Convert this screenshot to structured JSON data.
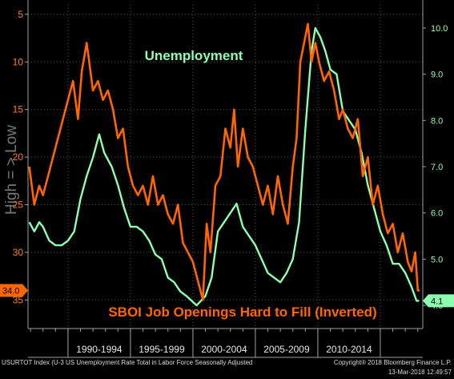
{
  "chart_data": {
    "type": "line",
    "title_unemployment": "Unemployment",
    "title_sboi": "SBOI Job Openings Hard to Fill (Inverted)",
    "left_axis_label": "High = > Low",
    "left_axis": {
      "ticks": [
        5,
        10,
        15,
        20,
        25,
        30,
        35
      ],
      "inverted": true,
      "range": [
        4,
        38
      ]
    },
    "right_axis": {
      "ticks": [
        "10.0",
        "9.0",
        "8.0",
        "7.0",
        "6.0",
        "5.0",
        "4.0"
      ],
      "range": [
        3.5,
        10.5
      ]
    },
    "x_axis": {
      "range": [
        1986.8,
        2018.4
      ],
      "period_labels": [
        "1990-1994",
        "1995-1999",
        "2000-2004",
        "2005-2009",
        "2010-2014"
      ],
      "period_ticks": [
        1990,
        1995,
        2000,
        2005,
        2010,
        2015
      ]
    },
    "last_value_left": "34.0",
    "last_value_right": "4.1",
    "colors": {
      "sboi": "#ff6600",
      "unemployment": "#8dffb0",
      "axis": "#a0a0a0",
      "bg": "#000000",
      "left_axis_text": "#ff7f1e",
      "right_axis_text": "#8dffb0",
      "axis_label": "#777777"
    },
    "series": [
      {
        "name": "Unemployment",
        "axis": "right",
        "points": [
          [
            1986.9,
            5.8
          ],
          [
            1987.3,
            5.6
          ],
          [
            1987.7,
            5.8
          ],
          [
            1988.0,
            5.7
          ],
          [
            1988.5,
            5.4
          ],
          [
            1989.0,
            5.3
          ],
          [
            1989.5,
            5.3
          ],
          [
            1990.0,
            5.4
          ],
          [
            1990.5,
            5.6
          ],
          [
            1991.0,
            6.3
          ],
          [
            1991.5,
            6.8
          ],
          [
            1992.0,
            7.2
          ],
          [
            1992.5,
            7.7
          ],
          [
            1992.9,
            7.3
          ],
          [
            1993.5,
            7.0
          ],
          [
            1994.0,
            6.6
          ],
          [
            1994.5,
            6.1
          ],
          [
            1995.0,
            5.7
          ],
          [
            1995.5,
            5.7
          ],
          [
            1996.0,
            5.6
          ],
          [
            1996.5,
            5.4
          ],
          [
            1997.0,
            5.1
          ],
          [
            1997.5,
            5.0
          ],
          [
            1998.0,
            4.6
          ],
          [
            1998.5,
            4.5
          ],
          [
            1999.0,
            4.3
          ],
          [
            1999.5,
            4.2
          ],
          [
            2000.3,
            4.0
          ],
          [
            2001.0,
            4.2
          ],
          [
            2001.5,
            4.6
          ],
          [
            2002.0,
            5.6
          ],
          [
            2002.5,
            5.8
          ],
          [
            2003.5,
            6.2
          ],
          [
            2004.0,
            5.7
          ],
          [
            2004.5,
            5.5
          ],
          [
            2005.0,
            5.3
          ],
          [
            2005.5,
            5.0
          ],
          [
            2006.0,
            4.7
          ],
          [
            2006.5,
            4.6
          ],
          [
            2007.0,
            4.5
          ],
          [
            2007.5,
            4.7
          ],
          [
            2008.0,
            5.0
          ],
          [
            2008.5,
            5.8
          ],
          [
            2009.0,
            7.8
          ],
          [
            2009.5,
            9.5
          ],
          [
            2009.8,
            10.0
          ],
          [
            2010.2,
            9.8
          ],
          [
            2010.6,
            9.5
          ],
          [
            2011.0,
            9.1
          ],
          [
            2011.5,
            9.0
          ],
          [
            2012.0,
            8.2
          ],
          [
            2012.5,
            8.0
          ],
          [
            2013.0,
            7.8
          ],
          [
            2013.5,
            7.3
          ],
          [
            2014.0,
            6.6
          ],
          [
            2014.5,
            6.1
          ],
          [
            2015.0,
            5.6
          ],
          [
            2015.5,
            5.3
          ],
          [
            2016.0,
            4.9
          ],
          [
            2016.5,
            4.9
          ],
          [
            2017.0,
            4.7
          ],
          [
            2017.5,
            4.4
          ],
          [
            2017.9,
            4.1
          ],
          [
            2018.1,
            4.1
          ]
        ]
      },
      {
        "name": "SBOI Job Openings Hard to Fill (Inverted)",
        "axis": "left",
        "points": [
          [
            1986.9,
            21
          ],
          [
            1987.3,
            25
          ],
          [
            1987.7,
            23
          ],
          [
            1988.0,
            24
          ],
          [
            1988.4,
            22
          ],
          [
            1988.8,
            20
          ],
          [
            1989.2,
            18
          ],
          [
            1989.6,
            16
          ],
          [
            1990.0,
            14
          ],
          [
            1990.4,
            12
          ],
          [
            1990.8,
            16
          ],
          [
            1991.1,
            11
          ],
          [
            1991.5,
            8
          ],
          [
            1992.0,
            13
          ],
          [
            1992.4,
            12
          ],
          [
            1992.8,
            14
          ],
          [
            1993.2,
            13
          ],
          [
            1993.6,
            15
          ],
          [
            1994.0,
            18
          ],
          [
            1994.4,
            17
          ],
          [
            1994.8,
            21
          ],
          [
            1995.2,
            23
          ],
          [
            1995.6,
            24
          ],
          [
            1996.0,
            23
          ],
          [
            1996.4,
            25
          ],
          [
            1996.8,
            22
          ],
          [
            1997.2,
            25
          ],
          [
            1997.6,
            24
          ],
          [
            1998.0,
            26
          ],
          [
            1998.4,
            27
          ],
          [
            1998.8,
            25
          ],
          [
            1999.2,
            29
          ],
          [
            1999.6,
            30
          ],
          [
            2000.0,
            31
          ],
          [
            2000.4,
            33
          ],
          [
            2000.8,
            35
          ],
          [
            2001.1,
            27
          ],
          [
            2001.4,
            30
          ],
          [
            2001.8,
            23
          ],
          [
            2002.2,
            22
          ],
          [
            2002.6,
            17
          ],
          [
            2003.0,
            19
          ],
          [
            2003.3,
            15
          ],
          [
            2003.6,
            21
          ],
          [
            2004.0,
            17
          ],
          [
            2004.4,
            20
          ],
          [
            2004.8,
            21
          ],
          [
            2005.2,
            23
          ],
          [
            2005.6,
            25
          ],
          [
            2006.0,
            23
          ],
          [
            2006.4,
            26
          ],
          [
            2006.8,
            22
          ],
          [
            2007.2,
            25
          ],
          [
            2007.6,
            27
          ],
          [
            2008.0,
            21
          ],
          [
            2008.3,
            18
          ],
          [
            2008.6,
            10
          ],
          [
            2008.9,
            8
          ],
          [
            2009.2,
            6
          ],
          [
            2009.5,
            10
          ],
          [
            2009.8,
            8
          ],
          [
            2010.1,
            10
          ],
          [
            2010.5,
            12
          ],
          [
            2010.9,
            11
          ],
          [
            2011.3,
            13
          ],
          [
            2011.7,
            16
          ],
          [
            2012.0,
            15
          ],
          [
            2012.4,
            17
          ],
          [
            2012.8,
            18
          ],
          [
            2013.2,
            16
          ],
          [
            2013.6,
            22
          ],
          [
            2014.0,
            20
          ],
          [
            2014.4,
            25
          ],
          [
            2014.8,
            23
          ],
          [
            2015.2,
            26
          ],
          [
            2015.6,
            28
          ],
          [
            2016.0,
            27
          ],
          [
            2016.4,
            30
          ],
          [
            2016.8,
            28
          ],
          [
            2017.2,
            31
          ],
          [
            2017.5,
            32
          ],
          [
            2017.8,
            30
          ],
          [
            2018.0,
            34
          ],
          [
            2018.15,
            34
          ]
        ]
      }
    ]
  },
  "footer": {
    "source": "USURTOT Index (U-3 US Unemployment Rate Total in Labor Force Seasonally Adjusted",
    "copyright": "Copyright® 2018 Bloomberg Finance L.P.",
    "timestamp": "13-Mar-2018 12:49:57"
  }
}
